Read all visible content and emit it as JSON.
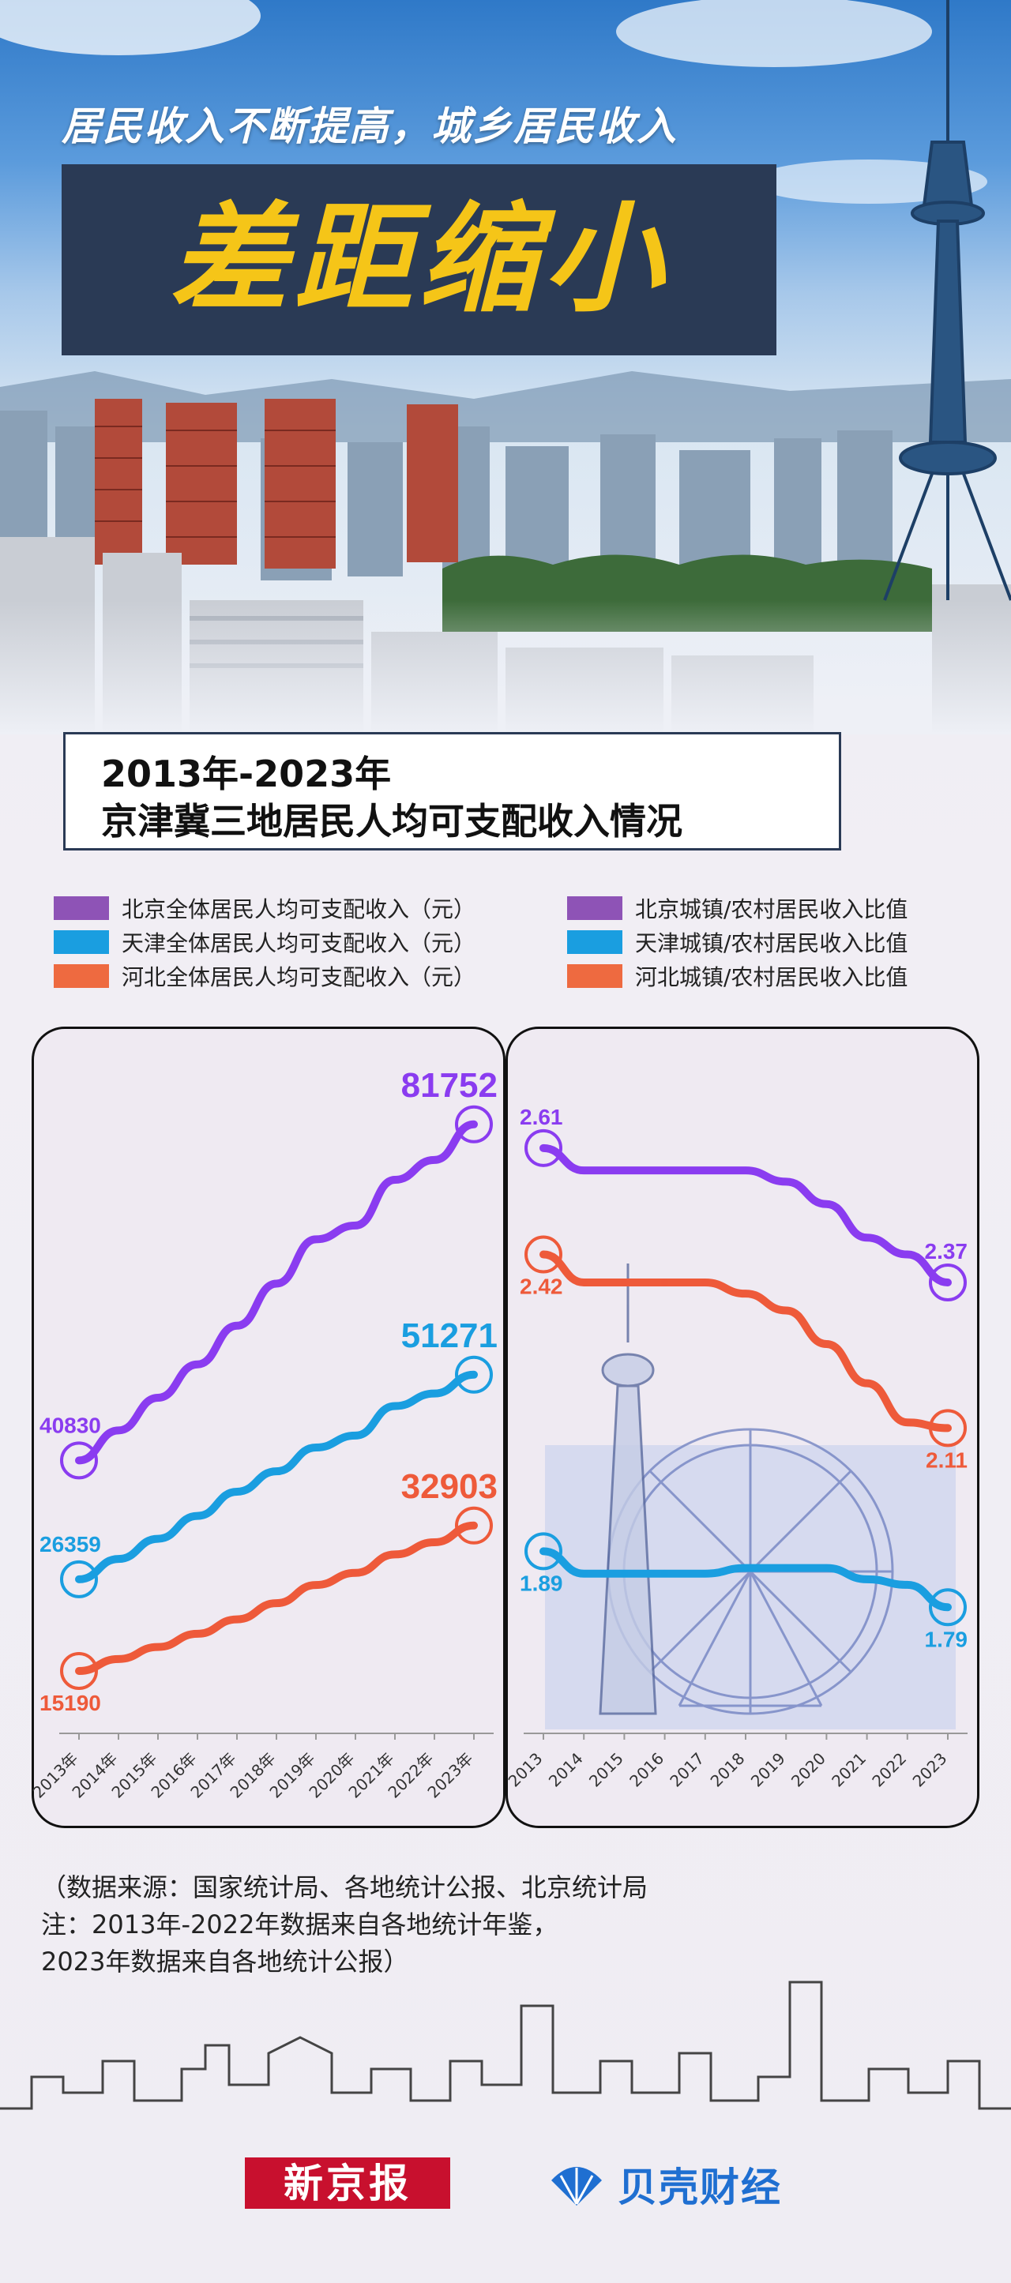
{
  "headline": "居民收入不断提高，城乡居民收入",
  "big_title": "差距缩小",
  "section": {
    "line1": "2013年-2023年",
    "line2": "京津冀三地居民人均可支配收入情况"
  },
  "legend": [
    {
      "label": "北京全体居民人均可支配收入（元）",
      "color": "#8e53b6"
    },
    {
      "label": "天津全体居民人均可支配收入（元）",
      "color": "#1a9ee0"
    },
    {
      "label": "河北全体居民人均可支配收入（元）",
      "color": "#ee6a40"
    },
    {
      "label": "北京城镇/农村居民收入比值",
      "color": "#8e53b6"
    },
    {
      "label": "天津城镇/农村居民收入比值",
      "color": "#1a9ee0"
    },
    {
      "label": "河北城镇/农村居民收入比值",
      "color": "#ee6a40"
    }
  ],
  "colors": {
    "beijing": "#8a3cf0",
    "tianjin": "#1a9ee0",
    "hebei": "#ee5a3a"
  },
  "chart_data": [
    {
      "type": "line",
      "categories": [
        "2013年",
        "2014年",
        "2015年",
        "2016年",
        "2017年",
        "2018年",
        "2019年",
        "2020年",
        "2021年",
        "2022年",
        "2023年"
      ],
      "ylim": [
        10000,
        85000
      ],
      "series": [
        {
          "name": "北京全体居民人均可支配收入（元）",
          "values": [
            40830,
            44489,
            48458,
            52530,
            57230,
            62361,
            67756,
            69434,
            75002,
            77415,
            81752
          ]
        },
        {
          "name": "天津全体居民人均可支配收入（元）",
          "values": [
            26359,
            28832,
            31291,
            34074,
            37022,
            39506,
            42404,
            43854,
            47449,
            48976,
            51271
          ]
        },
        {
          "name": "河北全体居民人均可支配收入（元）",
          "values": [
            15190,
            16647,
            18118,
            19725,
            21484,
            23446,
            25665,
            27136,
            29383,
            30867,
            32903
          ]
        }
      ],
      "labels": {
        "start": [
          "40830",
          "26359",
          "15190"
        ],
        "end": [
          "81752",
          "51271",
          "32903"
        ]
      }
    },
    {
      "type": "line",
      "categories": [
        "2013",
        "2014",
        "2015",
        "2016",
        "2017",
        "2018",
        "2019",
        "2020",
        "2021",
        "2022",
        "2023"
      ],
      "ylim": [
        1.6,
        2.7
      ],
      "series": [
        {
          "name": "北京城镇/农村居民收入比值",
          "values": [
            2.61,
            2.57,
            2.57,
            2.57,
            2.57,
            2.57,
            2.55,
            2.51,
            2.45,
            2.42,
            2.37
          ]
        },
        {
          "name": "天津城镇/农村居民收入比值",
          "values": [
            1.89,
            1.85,
            1.85,
            1.85,
            1.85,
            1.86,
            1.86,
            1.86,
            1.84,
            1.83,
            1.79
          ]
        },
        {
          "name": "河北城镇/农村居民收入比值",
          "values": [
            2.42,
            2.37,
            2.37,
            2.37,
            2.37,
            2.35,
            2.32,
            2.26,
            2.19,
            2.12,
            2.11
          ]
        }
      ],
      "labels": {
        "start": [
          "2.61",
          "1.89",
          "2.42"
        ],
        "end": [
          "2.37",
          "1.79",
          "2.11"
        ]
      }
    }
  ],
  "footnotes": [
    "（数据来源：国家统计局、各地统计公报、北京统计局",
    "注：2013年-2022年数据来自各地统计年鉴，",
    "2023年数据来自各地统计公报）"
  ],
  "brands": {
    "xjb": "新京报",
    "bk": "贝壳财经"
  }
}
